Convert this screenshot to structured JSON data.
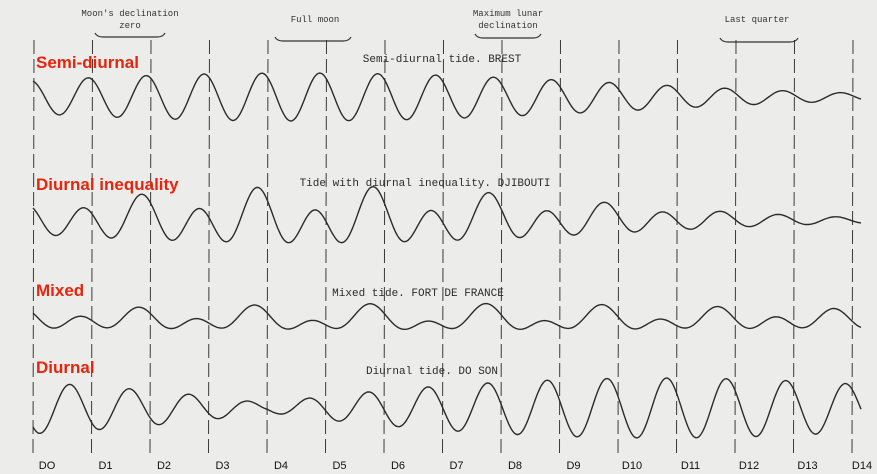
{
  "colors": {
    "background": "#ececea",
    "trace": "#2b2b2b",
    "gridline": "#3a3a3a",
    "category_label": "#e8250c"
  },
  "period_labels": {
    "declination_zero": [
      "Moon's declination",
      "zero"
    ],
    "full_moon": "Full moon",
    "max_declination": [
      "Maximum lunar",
      "declination"
    ],
    "last_quarter": "Last quarter"
  },
  "tide_types": [
    {
      "label": "Semi-diurnal",
      "title": "Semi-diurnal tide.  BREST"
    },
    {
      "label": "Diurnal inequality",
      "title": "Tide with diurnal inequality.  DJIBOUTI"
    },
    {
      "label": "Mixed",
      "title": "Mixed tide.  FORT DE FRANCE"
    },
    {
      "label": "Diurnal",
      "title": "Diurnal tide.  DO SON"
    }
  ],
  "day_labels": [
    "DO",
    "D1",
    "D2",
    "D3",
    "D4",
    "D5",
    "D6",
    "D7",
    "D8",
    "D9",
    "D10",
    "D11",
    "D12",
    "D13",
    "D14"
  ]
}
